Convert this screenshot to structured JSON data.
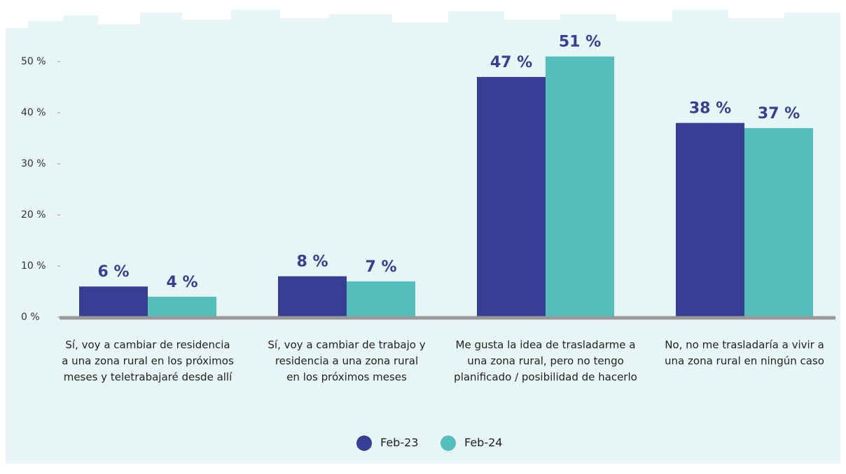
{
  "chart_data": {
    "type": "bar",
    "categories": [
      [
        "Sí, voy a cambiar de residencia",
        "a una zona rural en los próximos",
        "meses y teletrabajaré desde allí"
      ],
      [
        "Sí, voy a cambiar de trabajo y",
        "residencia a una zona rural",
        "en los próximos meses"
      ],
      [
        "Me gusta la idea de trasladarme a",
        "una zona rural, pero no tengo",
        "planificado / posibilidad de hacerlo"
      ],
      [
        "No, no me trasladaría a vivir a",
        "una zona rural en ningún caso"
      ]
    ],
    "series": [
      {
        "name": "Feb-23",
        "color": "#363f94",
        "values": [
          6,
          8,
          47,
          38
        ],
        "value_labels": [
          "6 %",
          "8 %",
          "47 %",
          "38 %"
        ]
      },
      {
        "name": "Feb-24",
        "color": "#55bfbb",
        "values": [
          4,
          7,
          51,
          37
        ],
        "value_labels": [
          "4 %",
          "7 %",
          "51 %",
          "37 %"
        ]
      }
    ],
    "ylim": [
      0,
      55
    ],
    "yticks": [
      {
        "value": 0,
        "label": "0 %"
      },
      {
        "value": 10,
        "label": "10 %"
      },
      {
        "value": 20,
        "label": "20 %"
      },
      {
        "value": 30,
        "label": "30 %"
      },
      {
        "value": 40,
        "label": "40 %"
      },
      {
        "value": 50,
        "label": "50 %"
      }
    ],
    "legend": "bottom"
  }
}
